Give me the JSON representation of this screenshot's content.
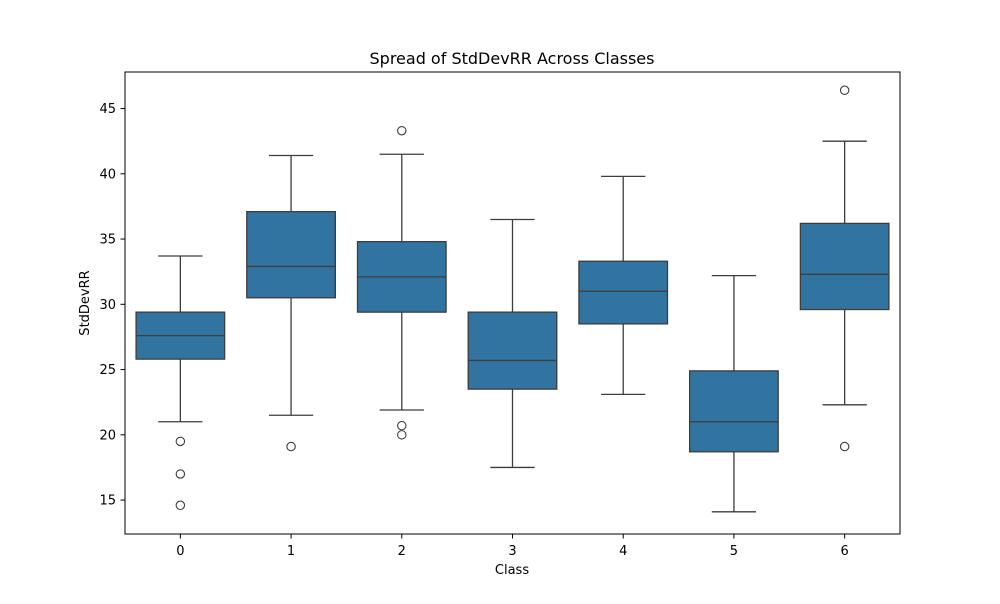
{
  "chart_data": {
    "type": "box",
    "title": "Spread of StdDevRR Across Classes",
    "xlabel": "Class",
    "ylabel": "StdDevRR",
    "categories": [
      "0",
      "1",
      "2",
      "3",
      "4",
      "5",
      "6"
    ],
    "ylim": [
      12.4,
      47.8
    ],
    "yticks": [
      15,
      20,
      25,
      30,
      35,
      40,
      45
    ],
    "grid": false,
    "box_color": "#3274a1",
    "line_color": "#3d3d3d",
    "boxes": [
      {
        "class": "0",
        "whisker_low": 21.0,
        "q1": 25.8,
        "median": 27.6,
        "q3": 29.4,
        "whisker_high": 33.7,
        "outliers": [
          19.5,
          17.0,
          14.6
        ]
      },
      {
        "class": "1",
        "whisker_low": 21.5,
        "q1": 30.5,
        "median": 32.9,
        "q3": 37.1,
        "whisker_high": 41.4,
        "outliers": [
          19.1
        ]
      },
      {
        "class": "2",
        "whisker_low": 21.9,
        "q1": 29.4,
        "median": 32.1,
        "q3": 34.8,
        "whisker_high": 41.5,
        "outliers": [
          43.3,
          20.7,
          20.0
        ]
      },
      {
        "class": "3",
        "whisker_low": 17.5,
        "q1": 23.5,
        "median": 25.7,
        "q3": 29.4,
        "whisker_high": 36.5,
        "outliers": []
      },
      {
        "class": "4",
        "whisker_low": 23.1,
        "q1": 28.5,
        "median": 31.0,
        "q3": 33.3,
        "whisker_high": 39.8,
        "outliers": []
      },
      {
        "class": "5",
        "whisker_low": 14.1,
        "q1": 18.7,
        "median": 21.0,
        "q3": 24.9,
        "whisker_high": 32.2,
        "outliers": []
      },
      {
        "class": "6",
        "whisker_low": 22.3,
        "q1": 29.6,
        "median": 32.3,
        "q3": 36.2,
        "whisker_high": 42.5,
        "outliers": [
          46.4,
          19.1
        ]
      }
    ]
  }
}
